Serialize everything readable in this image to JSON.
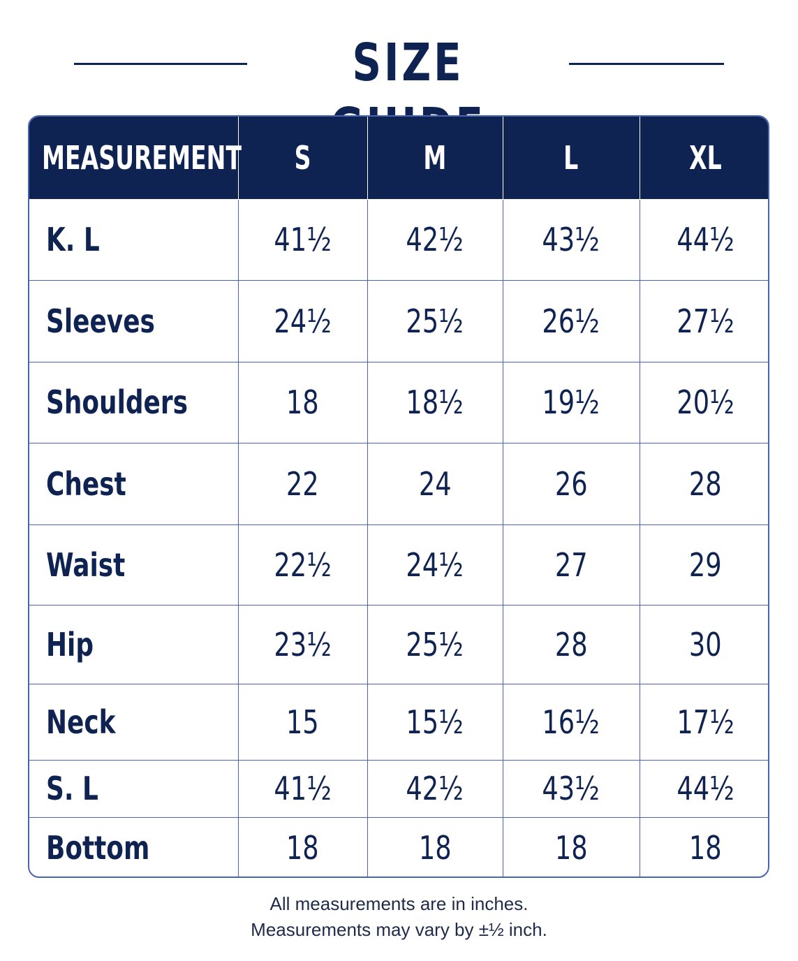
{
  "title": "SIZE GUIDE",
  "colors": {
    "navy": "#0f2352",
    "grid": "#4a64b5",
    "background": "#ffffff"
  },
  "table": {
    "headers": [
      "MEASUREMENT",
      "S",
      "M",
      "L",
      "XL"
    ],
    "rows": [
      {
        "label": "K. L",
        "values": [
          "41½",
          "42½",
          "43½",
          "44½"
        ]
      },
      {
        "label": "Sleeves",
        "values": [
          "24½",
          "25½",
          "26½",
          "27½"
        ]
      },
      {
        "label": "Shoulders",
        "values": [
          "18",
          "18½",
          "19½",
          "20½"
        ]
      },
      {
        "label": "Chest",
        "values": [
          "22",
          "24",
          "26",
          "28"
        ]
      },
      {
        "label": "Waist",
        "values": [
          "22½",
          "24½",
          "27",
          "29"
        ]
      },
      {
        "label": "Hip",
        "values": [
          "23½",
          "25½",
          "28",
          "30"
        ]
      },
      {
        "label": "Neck",
        "values": [
          "15",
          "15½",
          "16½",
          "17½"
        ]
      },
      {
        "label": "S. L",
        "values": [
          "41½",
          "42½",
          "43½",
          "44½"
        ]
      },
      {
        "label": "Bottom",
        "values": [
          "18",
          "18",
          "18",
          "18"
        ]
      }
    ]
  },
  "notes": [
    "All measurements are in inches.",
    "Measurements may vary by ±½ inch."
  ]
}
